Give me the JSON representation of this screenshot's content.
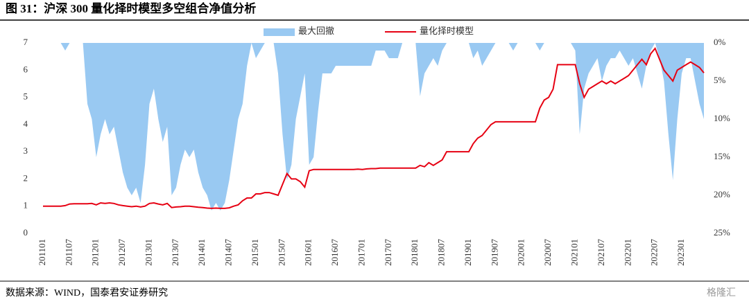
{
  "title": "图 31：沪深 300 量化择时模型多空组合净值分析",
  "source": "数据来源：WIND，国泰君安证券研究",
  "watermark": "格隆汇",
  "chart_data": {
    "type": "line",
    "categories": [
      "201101",
      null,
      null,
      null,
      null,
      null,
      "201107",
      null,
      null,
      null,
      null,
      null,
      "201201",
      null,
      null,
      null,
      null,
      null,
      "201207",
      null,
      null,
      null,
      null,
      null,
      "201301",
      null,
      null,
      null,
      null,
      null,
      "201307",
      null,
      null,
      null,
      null,
      null,
      "201401",
      null,
      null,
      null,
      null,
      null,
      "201407",
      null,
      null,
      null,
      null,
      null,
      "201501",
      null,
      null,
      null,
      null,
      null,
      "201507",
      null,
      null,
      null,
      null,
      null,
      "201601",
      null,
      null,
      null,
      null,
      null,
      "201607",
      null,
      null,
      null,
      null,
      null,
      "201701",
      null,
      null,
      null,
      null,
      null,
      "201707",
      null,
      null,
      null,
      null,
      null,
      "201801",
      null,
      null,
      null,
      null,
      null,
      "201807",
      null,
      null,
      null,
      null,
      null,
      "201901",
      null,
      null,
      null,
      null,
      null,
      "201907",
      null,
      null,
      null,
      null,
      null,
      "202001",
      null,
      null,
      null,
      null,
      null,
      "202007",
      null,
      null,
      null,
      null,
      null,
      "202101",
      null,
      null,
      null,
      null,
      null,
      "202107",
      null,
      null,
      null,
      null,
      null,
      "202201",
      null,
      null,
      null,
      null,
      null,
      "202207",
      null,
      null,
      null,
      null,
      null,
      "202301",
      null,
      null,
      null,
      null,
      null
    ],
    "series": [
      {
        "name": "最大回撤",
        "color": "#99c9f2",
        "axis": "y2",
        "type": "area",
        "values": [
          0,
          0,
          0,
          0,
          0,
          1,
          0,
          0,
          0,
          0,
          8,
          10,
          15,
          12,
          10,
          12,
          11,
          14,
          17,
          19,
          20,
          19,
          21,
          16,
          8,
          6,
          10,
          13,
          11,
          20,
          19,
          16,
          14,
          15,
          14,
          17,
          19,
          20,
          22,
          21,
          22,
          21,
          18,
          14,
          10,
          8,
          3,
          0,
          2,
          1,
          0,
          0,
          0,
          4,
          12,
          18,
          16,
          10,
          7,
          4,
          16,
          15,
          9,
          4,
          4,
          4,
          3,
          3,
          3,
          3,
          3,
          3,
          3,
          3,
          3,
          1,
          1,
          1,
          2,
          2,
          2,
          0,
          0,
          0,
          0,
          7,
          4,
          3,
          2,
          3,
          1,
          0,
          0,
          0,
          0,
          0,
          0,
          2,
          1,
          3,
          2,
          1,
          0,
          0,
          0,
          0,
          1,
          0,
          0,
          0,
          0,
          0,
          1,
          0,
          0,
          0,
          0,
          0,
          0,
          0,
          1,
          12,
          6,
          4,
          3,
          2,
          5,
          3,
          2,
          2,
          1,
          2,
          3,
          2,
          4,
          6,
          3,
          1,
          0,
          2,
          5,
          12,
          18,
          10,
          4,
          2,
          2,
          5,
          8,
          10
        ]
      },
      {
        "name": "量化择时模型",
        "color": "#e60012",
        "axis": "y",
        "values": [
          1.0,
          1.0,
          1.0,
          1.0,
          1.0,
          1.02,
          1.08,
          1.09,
          1.09,
          1.09,
          1.09,
          1.1,
          1.05,
          1.12,
          1.1,
          1.12,
          1.1,
          1.05,
          1.02,
          1.0,
          0.98,
          1.0,
          0.97,
          1.0,
          1.1,
          1.12,
          1.08,
          1.05,
          1.1,
          0.95,
          0.97,
          0.98,
          1.0,
          1.0,
          0.98,
          0.96,
          0.95,
          0.93,
          0.92,
          0.93,
          0.92,
          0.92,
          0.94,
          1.0,
          1.05,
          1.2,
          1.3,
          1.3,
          1.45,
          1.45,
          1.5,
          1.5,
          1.45,
          1.4,
          1.8,
          2.2,
          2.0,
          2.0,
          1.9,
          1.7,
          2.3,
          2.35,
          2.35,
          2.35,
          2.35,
          2.35,
          2.35,
          2.35,
          2.35,
          2.35,
          2.35,
          2.36,
          2.35,
          2.37,
          2.38,
          2.38,
          2.4,
          2.4,
          2.4,
          2.4,
          2.4,
          2.4,
          2.4,
          2.4,
          2.4,
          2.5,
          2.45,
          2.6,
          2.5,
          2.6,
          2.7,
          3.0,
          3.0,
          3.0,
          3.0,
          3.0,
          3.0,
          3.3,
          3.5,
          3.6,
          3.8,
          4.0,
          4.1,
          4.1,
          4.1,
          4.1,
          4.1,
          4.1,
          4.1,
          4.1,
          4.1,
          4.1,
          4.6,
          4.9,
          5.0,
          5.3,
          6.2,
          6.2,
          6.2,
          6.2,
          6.2,
          5.5,
          5.0,
          5.3,
          5.4,
          5.5,
          5.6,
          5.5,
          5.6,
          5.5,
          5.6,
          5.7,
          5.8,
          6.0,
          6.2,
          6.4,
          6.2,
          6.6,
          6.8,
          6.4,
          6.0,
          5.8,
          5.6,
          6.0,
          6.1,
          6.2,
          6.3,
          6.2,
          6.1,
          5.9
        ]
      }
    ],
    "ylim": [
      0,
      7
    ],
    "yticks": [
      0,
      1,
      2,
      3,
      4,
      5,
      6,
      7
    ],
    "y2lim": [
      0,
      25
    ],
    "y2_inverted": true,
    "y2ticks": [
      {
        "value": 0,
        "label": "0%"
      },
      {
        "value": 5,
        "label": "5%"
      },
      {
        "value": 10,
        "label": "10%"
      },
      {
        "value": 15,
        "label": "15%"
      },
      {
        "value": 20,
        "label": "20%"
      },
      {
        "value": 25,
        "label": "25%"
      }
    ],
    "legend": "top"
  }
}
